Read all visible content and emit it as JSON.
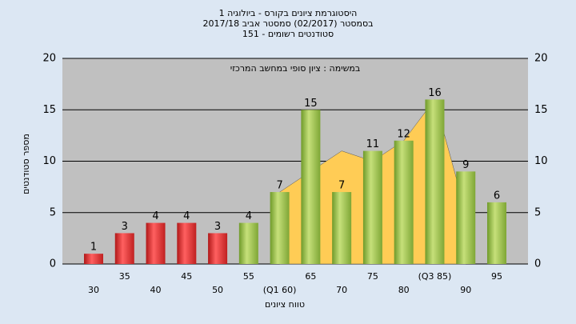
{
  "chart_data": {
    "type": "bar",
    "title": [
      "היסטוגרמת ציונים בקורס - ביולוגיה 1",
      "בסמסטר  (02/2017)  סמסטר אביב 2017/18",
      "סטודנטים רשומים - 151"
    ],
    "subtitle": "במשימה : ציון סופי במחשב המרכזי",
    "xlabel": "טווח ציונים",
    "ylabel": "מספר סטודנטים",
    "categories": [
      "30",
      "35",
      "40",
      "45",
      "50",
      "55",
      "(Q1 60)",
      "65",
      "70",
      "75",
      "80",
      "(Q3 85)",
      "90",
      "95"
    ],
    "values": [
      1,
      3,
      4,
      4,
      3,
      4,
      7,
      15,
      7,
      11,
      12,
      16,
      9,
      6
    ],
    "colors": [
      "red",
      "red",
      "red",
      "red",
      "red",
      "green",
      "green",
      "green",
      "green",
      "green",
      "green",
      "green",
      "green",
      "green"
    ],
    "area_values": [
      null,
      null,
      null,
      null,
      null,
      null,
      7,
      9,
      11,
      10,
      12,
      16,
      5,
      null
    ],
    "area_color": "#ffcc55",
    "ylim": [
      0,
      20
    ],
    "yticks": [
      0,
      5,
      10,
      15,
      20
    ],
    "grid": true
  }
}
